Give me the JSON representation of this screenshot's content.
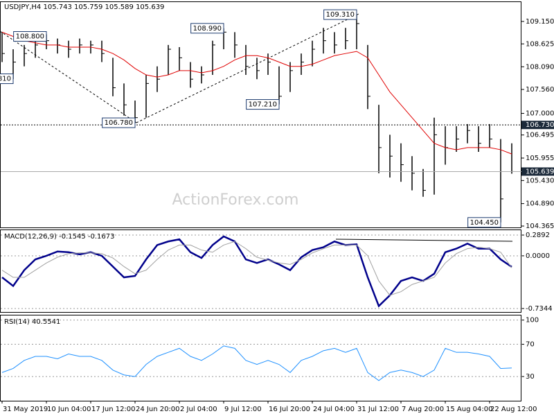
{
  "chart_data": [
    {
      "type": "ohlc",
      "title": "USDJPY,H4  105.743 105.759 105.589 105.639",
      "watermark": "ActionForex.com",
      "color": "#000000",
      "categories": [
        "31 May 2019",
        null,
        null,
        null,
        "10 Jun 04:00",
        null,
        null,
        null,
        "17 Jun 12:00",
        null,
        null,
        null,
        "24 Jun 20:00",
        null,
        null,
        null,
        "2 Jul 04:00",
        null,
        null,
        null,
        "9 Jul 12:00",
        null,
        null,
        null,
        "16 Jul 20:00",
        null,
        null,
        null,
        "24 Jul 04:00",
        null,
        null,
        null,
        "31 Jul 12:00",
        null,
        null,
        null,
        "7 Aug 20:00",
        null,
        null,
        null,
        "15 Aug 04:00",
        null,
        null,
        null,
        "22 Aug 12:00",
        null,
        null
      ],
      "high": [
        108.9,
        108.5,
        108.6,
        108.8,
        108.85,
        108.75,
        108.7,
        108.75,
        108.7,
        108.7,
        108.3,
        107.7,
        107.3,
        107.9,
        108.1,
        108.6,
        108.55,
        108.2,
        108.1,
        108.7,
        108.99,
        108.9,
        108.6,
        108.3,
        108.4,
        108.1,
        108.2,
        108.4,
        108.7,
        109.0,
        108.9,
        109.0,
        109.31,
        108.6,
        107.2,
        106.5,
        106.3,
        106.0,
        105.7,
        106.9,
        106.7,
        106.7,
        106.75,
        106.7,
        106.75,
        106.4,
        106.3
      ],
      "low": [
        108.2,
        107.8,
        108.1,
        108.3,
        108.5,
        108.4,
        108.3,
        108.4,
        108.4,
        108.2,
        107.4,
        106.95,
        106.78,
        106.9,
        107.5,
        107.9,
        108.0,
        107.6,
        107.7,
        107.9,
        108.5,
        108.3,
        107.9,
        107.8,
        107.9,
        107.21,
        107.5,
        107.9,
        108.1,
        108.4,
        108.4,
        108.5,
        108.5,
        107.1,
        105.6,
        105.5,
        105.4,
        105.2,
        105.05,
        105.1,
        105.8,
        106.1,
        106.3,
        106.1,
        106.2,
        104.45,
        105.589
      ],
      "close": [
        108.4,
        108.2,
        108.4,
        108.6,
        108.7,
        108.6,
        108.5,
        108.6,
        108.6,
        108.4,
        107.6,
        107.2,
        106.9,
        107.7,
        107.8,
        108.5,
        108.3,
        107.8,
        107.9,
        108.6,
        108.9,
        108.6,
        108.1,
        108.0,
        108.2,
        107.4,
        108.0,
        108.2,
        108.5,
        108.7,
        108.6,
        108.7,
        109.1,
        107.4,
        106.2,
        106.0,
        105.8,
        105.6,
        105.2,
        106.5,
        106.2,
        106.4,
        106.6,
        106.3,
        106.4,
        105.0,
        105.639
      ],
      "ma": {
        "color": "#e00000",
        "values": [
          108.9,
          108.8,
          108.7,
          108.65,
          108.6,
          108.6,
          108.55,
          108.55,
          108.55,
          108.5,
          108.4,
          108.25,
          108.05,
          107.9,
          107.85,
          107.9,
          108.0,
          108.0,
          107.95,
          108.0,
          108.1,
          108.25,
          108.35,
          108.35,
          108.3,
          108.2,
          108.1,
          108.1,
          108.15,
          108.25,
          108.35,
          108.4,
          108.45,
          108.3,
          107.9,
          107.5,
          107.2,
          106.9,
          106.6,
          106.3,
          106.2,
          106.15,
          106.2,
          106.2,
          106.2,
          106.15,
          106.05
        ]
      },
      "ylim": [
        104.333,
        109.603
      ],
      "yticks": [
        {
          "value": 109.15,
          "label": "109.150"
        },
        {
          "value": 108.625,
          "label": "108.625"
        },
        {
          "value": 108.09,
          "label": "108.090"
        },
        {
          "value": 107.56,
          "label": "107.560"
        },
        {
          "value": 107.0,
          "label": "107.000"
        },
        {
          "value": 106.495,
          "label": "106.495"
        },
        {
          "value": 105.955,
          "label": "105.955"
        },
        {
          "value": 105.43,
          "label": "105.430"
        },
        {
          "value": 104.89,
          "label": "104.890"
        },
        {
          "value": 104.365,
          "label": "104.365"
        }
      ],
      "hlines": [
        {
          "value": 106.73,
          "label": "106.730",
          "style": "dotted"
        },
        {
          "value": 105.639,
          "label": "105.639",
          "style": "solid"
        }
      ],
      "annotations": [
        {
          "label": ".810",
          "value": 107.81,
          "x": 1
        },
        {
          "label": "108.800",
          "value": 108.8,
          "x": 4
        },
        {
          "label": "106.780",
          "value": 106.78,
          "x": 12
        },
        {
          "label": "108.990",
          "value": 108.99,
          "x": 20
        },
        {
          "label": "107.210",
          "value": 107.21,
          "x": 25
        },
        {
          "label": "109.310",
          "value": 109.31,
          "x": 32
        },
        {
          "label": "104.450",
          "value": 104.45,
          "x": 45
        }
      ]
    },
    {
      "type": "line",
      "title": "MACD(12,26,9) -0.1545 -0.1673",
      "ylim": [
        -0.783,
        0.357
      ],
      "yticks": [
        0.2892,
        {
          "value": 0,
          "label": "0.0000"
        },
        -0.7344
      ],
      "series": [
        {
          "color": "#00008b",
          "width": 2.5,
          "values": [
            -0.3,
            -0.42,
            -0.2,
            -0.05,
            0.0,
            0.06,
            0.05,
            0.02,
            0.05,
            0.0,
            -0.15,
            -0.3,
            -0.28,
            -0.05,
            0.15,
            0.2,
            0.23,
            0.05,
            -0.03,
            0.15,
            0.27,
            0.2,
            -0.05,
            -0.1,
            -0.05,
            -0.12,
            -0.2,
            -0.02,
            0.08,
            0.12,
            0.2,
            0.15,
            0.16,
            -0.3,
            -0.7,
            -0.55,
            -0.35,
            -0.3,
            -0.35,
            -0.25,
            0.05,
            0.1,
            0.17,
            0.1,
            0.1,
            -0.05,
            -0.1545
          ]
        },
        {
          "color": "#a0a0a0",
          "width": 1,
          "values": [
            -0.2,
            -0.3,
            -0.3,
            -0.2,
            -0.1,
            -0.02,
            0.03,
            0.04,
            0.04,
            0.03,
            -0.03,
            -0.15,
            -0.25,
            -0.2,
            -0.05,
            0.08,
            0.15,
            0.15,
            0.08,
            0.05,
            0.15,
            0.2,
            0.1,
            -0.02,
            -0.06,
            -0.1,
            -0.12,
            -0.05,
            0.04,
            0.1,
            0.15,
            0.15,
            0.15,
            0.0,
            -0.35,
            -0.55,
            -0.5,
            -0.4,
            -0.35,
            -0.3,
            -0.1,
            0.03,
            0.1,
            0.12,
            0.1,
            0.05,
            -0.1673
          ]
        }
      ]
    },
    {
      "type": "line",
      "title": "RSI(14) 40.5541",
      "ylim": [
        0,
        105.7
      ],
      "yticks": [
        30,
        70,
        100
      ],
      "series": [
        {
          "color": "#1e90ff",
          "width": 1,
          "values": [
            35,
            40,
            50,
            55,
            55,
            52,
            58,
            55,
            55,
            50,
            38,
            32,
            30,
            45,
            55,
            60,
            65,
            55,
            50,
            58,
            68,
            65,
            50,
            45,
            50,
            45,
            35,
            50,
            55,
            62,
            65,
            60,
            65,
            35,
            25,
            35,
            38,
            35,
            30,
            38,
            65,
            60,
            60,
            58,
            55,
            40,
            40.5541
          ]
        }
      ]
    }
  ]
}
